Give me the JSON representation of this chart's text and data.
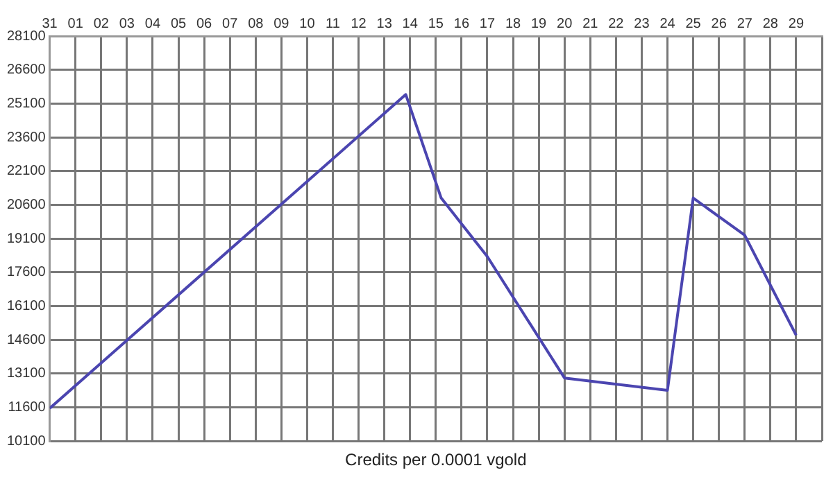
{
  "chart_data": {
    "type": "line",
    "xlabel": "Credits per 0.0001 vgold",
    "x": [
      "--01-31",
      "--02-13T20:00",
      "--02-15T05:00",
      "--02-17",
      "--02-20",
      "--02-24",
      "--02-25",
      "--02-27",
      "--02-29"
    ],
    "series": [
      {
        "color": "#4b45b0",
        "values": [
          11550,
          25500,
          20900,
          18300,
          12900,
          12350,
          20900,
          19250,
          14800
        ]
      }
    ],
    "xlim": [
      "--01-31",
      "--03-01"
    ],
    "xticks": [
      {
        "value": "--01-31",
        "label": "31"
      },
      {
        "value": "--02-01",
        "label": "01"
      },
      {
        "value": "--02-02",
        "label": "02"
      },
      {
        "value": "--02-03",
        "label": "03"
      },
      {
        "value": "--02-04",
        "label": "04"
      },
      {
        "value": "--02-05",
        "label": "05"
      },
      {
        "value": "--02-06",
        "label": "06"
      },
      {
        "value": "--02-07",
        "label": "07"
      },
      {
        "value": "--02-08",
        "label": "08"
      },
      {
        "value": "--02-09",
        "label": "09"
      },
      {
        "value": "--02-10",
        "label": "10"
      },
      {
        "value": "--02-11",
        "label": "11"
      },
      {
        "value": "--02-12",
        "label": "12"
      },
      {
        "value": "--02-13",
        "label": "13"
      },
      {
        "value": "--02-14",
        "label": "14"
      },
      {
        "value": "--02-15",
        "label": "15"
      },
      {
        "value": "--02-16",
        "label": "16"
      },
      {
        "value": "--02-17",
        "label": "17"
      },
      {
        "value": "--02-18",
        "label": "18"
      },
      {
        "value": "--02-19",
        "label": "19"
      },
      {
        "value": "--02-20",
        "label": "20"
      },
      {
        "value": "--02-21",
        "label": "21"
      },
      {
        "value": "--02-22",
        "label": "22"
      },
      {
        "value": "--02-23",
        "label": "23"
      },
      {
        "value": "--02-24",
        "label": "24"
      },
      {
        "value": "--02-25",
        "label": "25"
      },
      {
        "value": "--02-26",
        "label": "26"
      },
      {
        "value": "--02-27",
        "label": "27"
      },
      {
        "value": "--02-28",
        "label": "28"
      },
      {
        "value": "--02-29",
        "label": "29"
      },
      {
        "value": "--03-01",
        "label": null
      }
    ],
    "ylim": [
      10100,
      28100
    ],
    "yticks": [
      10100,
      11600,
      13100,
      14600,
      16100,
      17600,
      19100,
      20600,
      22100,
      23600,
      25100,
      26600,
      28100
    ],
    "grid": true,
    "legend": false,
    "marker": "none",
    "line_style": "solid"
  }
}
